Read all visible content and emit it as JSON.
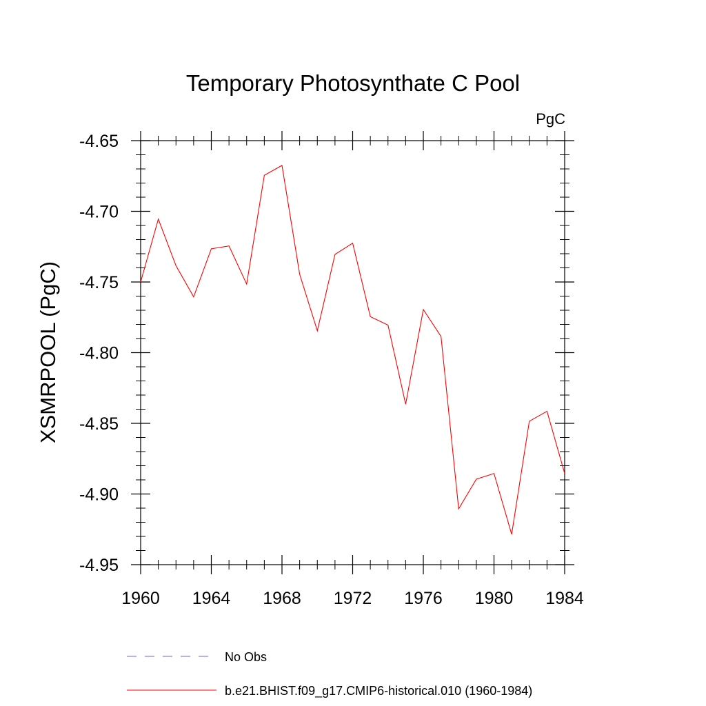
{
  "chart_data": {
    "type": "line",
    "title": "Temporary Photosynthate C Pool",
    "units": "PgC",
    "xlabel": "",
    "ylabel": "XSMRPOOL  (PgC)",
    "xlim": [
      1960,
      1984
    ],
    "ylim": [
      -4.95,
      -4.65
    ],
    "x_ticks": [
      1960,
      1964,
      1968,
      1972,
      1976,
      1980,
      1984
    ],
    "x_tick_labels": [
      "1960",
      "1964",
      "1968",
      "1972",
      "1976",
      "1980",
      "1984"
    ],
    "y_ticks": [
      -4.95,
      -4.9,
      -4.85,
      -4.8,
      -4.75,
      -4.7,
      -4.65
    ],
    "y_tick_labels": [
      "-4.95",
      "-4.90",
      "-4.85",
      "-4.80",
      "-4.75",
      "-4.70",
      "-4.65"
    ],
    "grid": false,
    "legend_position": "bottom",
    "legend": [
      {
        "label": "No Obs",
        "style": "dashed",
        "color": "#6a6ad8"
      },
      {
        "label": "b.e21.BHIST.f09_g17.CMIP6-historical.010 (1960-1984)",
        "style": "solid",
        "color": "#ff0000"
      }
    ],
    "series": [
      {
        "name": "b.e21.BHIST.f09_g17.CMIP6-historical.010 (1960-1984)",
        "color": "#ff0000",
        "x": [
          1960,
          1961,
          1962,
          1963,
          1964,
          1965,
          1966,
          1967,
          1968,
          1969,
          1970,
          1971,
          1972,
          1973,
          1974,
          1975,
          1976,
          1977,
          1978,
          1979,
          1980,
          1981,
          1982,
          1983,
          1984
        ],
        "y": [
          -4.75,
          -4.7055,
          -4.7385,
          -4.7605,
          -4.7265,
          -4.7245,
          -4.7515,
          -4.6745,
          -4.6675,
          -4.7445,
          -4.7845,
          -4.7305,
          -4.7225,
          -4.7745,
          -4.7805,
          -4.8365,
          -4.7695,
          -4.7885,
          -4.9105,
          -4.8895,
          -4.8855,
          -4.9285,
          -4.8485,
          -4.8415,
          -4.8855
        ]
      }
    ]
  }
}
